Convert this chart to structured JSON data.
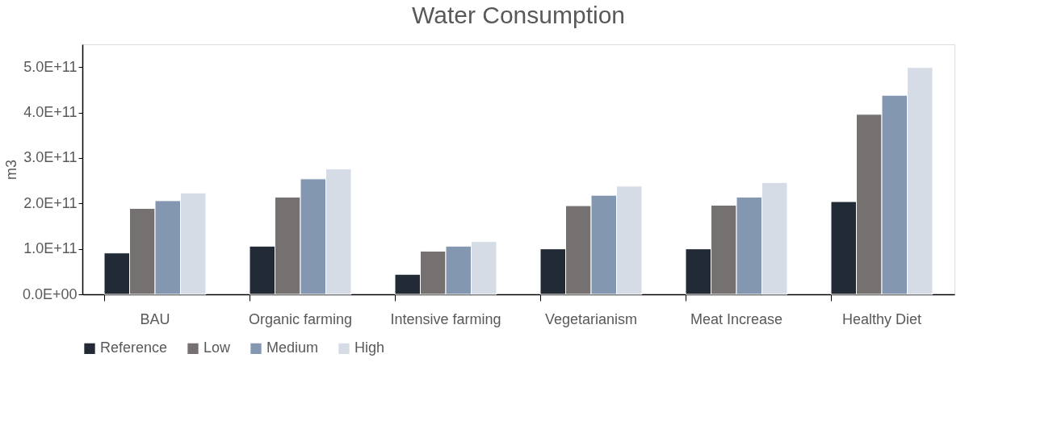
{
  "chart_data": {
    "type": "bar",
    "title": "Water Consumption",
    "ylabel": "m3",
    "categories": [
      "BAU",
      "Organic farming",
      "Intensive farming",
      "Vegetarianism",
      "Meat Increase",
      "Healthy Diet"
    ],
    "series": [
      {
        "name": "Reference",
        "color": "#222a35",
        "values": [
          91000000000.0,
          106000000000.0,
          44000000000.0,
          100000000000.0,
          100000000000.0,
          204000000000.0
        ]
      },
      {
        "name": "Low",
        "color": "#767171",
        "values": [
          189000000000.0,
          214000000000.0,
          95000000000.0,
          195000000000.0,
          196000000000.0,
          396000000000.0
        ]
      },
      {
        "name": "Medium",
        "color": "#8497b0",
        "values": [
          206000000000.0,
          254000000000.0,
          106000000000.0,
          218000000000.0,
          214000000000.0,
          438000000000.0
        ]
      },
      {
        "name": "High",
        "color": "#d6dce5",
        "values": [
          223000000000.0,
          276000000000.0,
          116000000000.0,
          238000000000.0,
          246000000000.0,
          499000000000.0
        ]
      }
    ],
    "ylim": [
      0,
      550000000000.0
    ],
    "yticks": [
      {
        "value": 0,
        "label": "0.0E+00"
      },
      {
        "value": 100000000000.0,
        "label": "1.0E+11"
      },
      {
        "value": 200000000000.0,
        "label": "2.0E+11"
      },
      {
        "value": 300000000000.0,
        "label": "3.0E+11"
      },
      {
        "value": 400000000000.0,
        "label": "4.0E+11"
      },
      {
        "value": 500000000000.0,
        "label": "5.0E+11"
      }
    ],
    "grid": false,
    "legend": "bottom"
  }
}
